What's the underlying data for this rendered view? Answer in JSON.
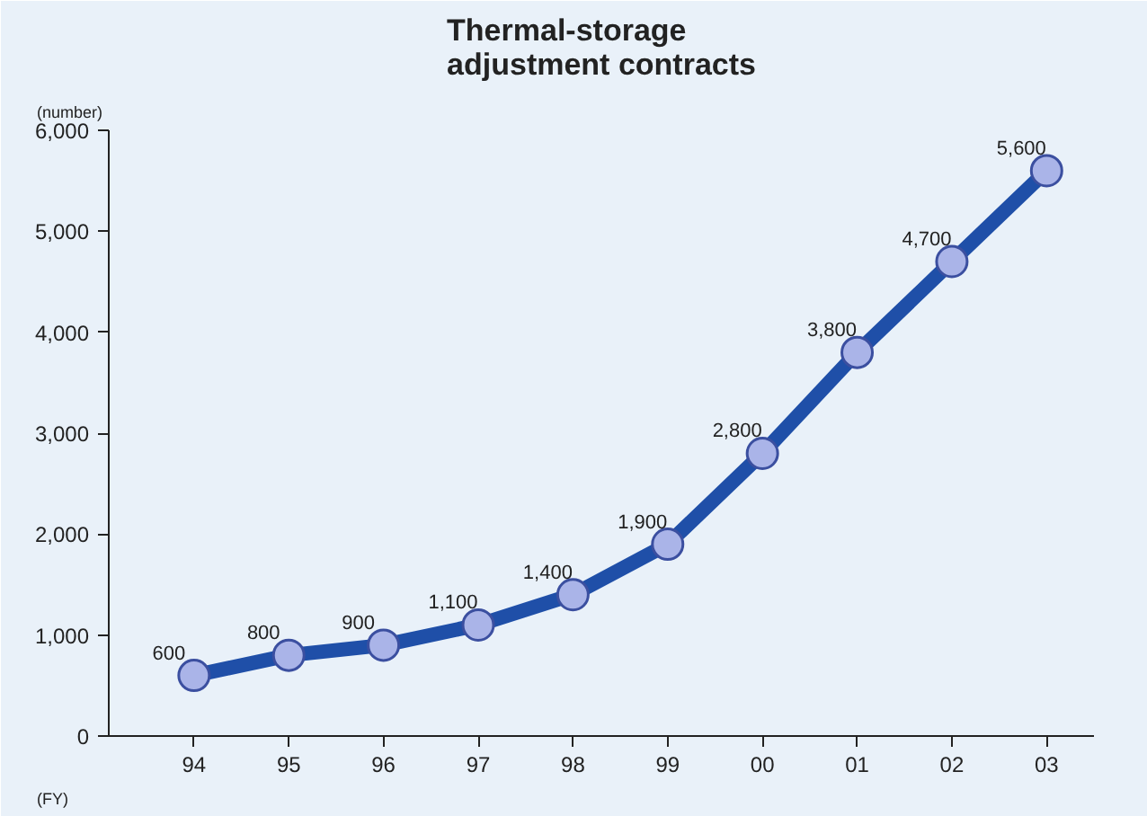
{
  "chart_data": {
    "type": "line",
    "title": "Thermal-storage\nadjustment contracts",
    "ylabel": "(number)",
    "xlabel": "(FY)",
    "categories": [
      "94",
      "95",
      "96",
      "97",
      "98",
      "99",
      "00",
      "01",
      "02",
      "03"
    ],
    "series": [
      {
        "color": "#1f4fa8",
        "values": [
          600,
          800,
          900,
          1100,
          1400,
          1900,
          2800,
          3800,
          4700,
          5600
        ],
        "value_labels": [
          "600",
          "800",
          "900",
          "1,100",
          "1,400",
          "1,900",
          "2,800",
          "3,800",
          "4,700",
          "5,600"
        ]
      }
    ],
    "ylim": [
      0,
      6000
    ],
    "yticks": [
      {
        "value": 0,
        "label": "0"
      },
      {
        "value": 1000,
        "label": "1,000"
      },
      {
        "value": 2000,
        "label": "2,000"
      },
      {
        "value": 3000,
        "label": "3,000"
      },
      {
        "value": 4000,
        "label": "4,000"
      },
      {
        "value": 5000,
        "label": "5,000"
      },
      {
        "value": 6000,
        "label": "6,000"
      }
    ],
    "grid": false,
    "marker": "circle",
    "line_style": "solid"
  }
}
